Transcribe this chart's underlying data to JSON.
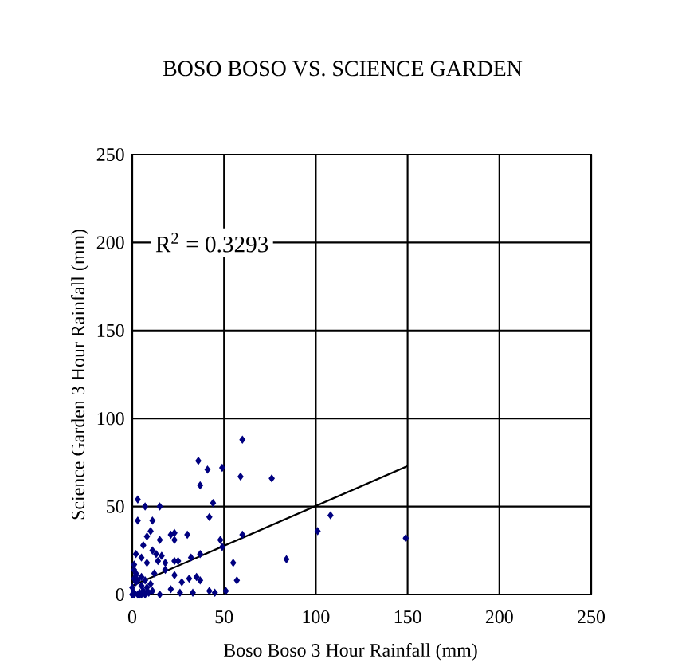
{
  "chart_data": {
    "type": "scatter",
    "title": "BOSO BOSO VS. SCIENCE GARDEN",
    "xlabel": "Boso Boso 3 Hour Rainfall (mm)",
    "ylabel": "Science Garden 3 Hour Rainfall (mm)",
    "xlim": [
      0,
      250
    ],
    "ylim": [
      0,
      250
    ],
    "xticks": [
      0,
      50,
      100,
      150,
      200,
      250
    ],
    "yticks": [
      0,
      50,
      100,
      150,
      200,
      250
    ],
    "grid": true,
    "marker": "diamond",
    "annotations": [
      "R$^{2}$ = 0.3293"
    ],
    "series": [
      {
        "color": "#000080",
        "x": [
          60,
          36,
          41,
          49,
          59,
          76,
          37,
          44,
          3,
          7,
          15,
          3,
          11,
          42,
          108,
          101,
          149,
          60,
          10,
          8,
          15,
          21,
          23,
          30,
          48,
          49,
          23,
          55,
          84,
          57,
          37,
          32,
          6,
          11,
          13,
          16,
          14,
          18,
          23,
          25,
          2,
          5,
          8,
          1,
          23,
          31,
          35,
          37,
          27,
          18,
          12,
          21,
          26,
          33,
          42,
          45,
          51,
          15,
          1,
          4,
          5,
          6,
          7,
          8,
          9,
          10,
          1,
          2,
          5,
          8,
          0,
          2,
          3,
          0,
          1,
          1,
          4,
          2,
          7,
          11,
          5,
          3
        ],
        "values": [
          88,
          76,
          71,
          72,
          67,
          66,
          62,
          52,
          54,
          50,
          50,
          42,
          42,
          44,
          45,
          36,
          32,
          34,
          36,
          33,
          31,
          34,
          35,
          34,
          31,
          27,
          31,
          18,
          20,
          8,
          23,
          21,
          28,
          25,
          23,
          22,
          19,
          18,
          19,
          19,
          23,
          21,
          18,
          17,
          11,
          9,
          10,
          8,
          7,
          14,
          12,
          3,
          1,
          1,
          2,
          1,
          2,
          0,
          1,
          1,
          5,
          2,
          8,
          4,
          1,
          6,
          9,
          12,
          10,
          1,
          4,
          7,
          0,
          0,
          14,
          0,
          0,
          11,
          0,
          2,
          0,
          8
        ]
      },
      {
        "type": "line",
        "color": "#000000",
        "marker": "none",
        "x": [
          0,
          150
        ],
        "values": [
          5,
          73
        ]
      }
    ]
  }
}
